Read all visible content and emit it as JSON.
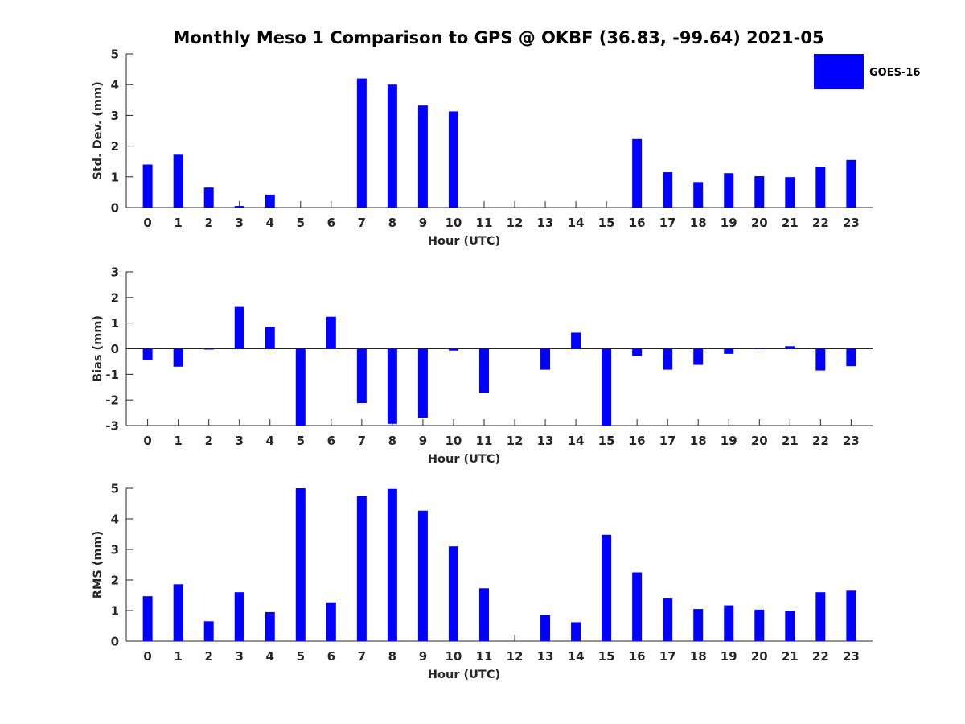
{
  "figure_title": "Monthly Meso 1 Comparison to GPS @ OKBF (36.83, -99.64) 2021-05",
  "legend": {
    "label": "GOES-16",
    "color": "#0000ff"
  },
  "bar_color": "#0000ff",
  "chart_data": [
    {
      "type": "bar",
      "title": "Monthly Meso 1 Comparison to GPS @ OKBF (36.83, -99.64) 2021-05",
      "xlabel": "Hour (UTC)",
      "ylabel": "Std. Dev. (mm)",
      "ylim": [
        0,
        5
      ],
      "yticks": [
        0,
        1,
        2,
        3,
        4,
        5
      ],
      "categories": [
        "0",
        "1",
        "2",
        "3",
        "4",
        "5",
        "6",
        "7",
        "8",
        "9",
        "10",
        "11",
        "12",
        "13",
        "14",
        "15",
        "16",
        "17",
        "18",
        "19",
        "20",
        "21",
        "22",
        "23"
      ],
      "series": [
        {
          "name": "GOES-16",
          "values": [
            1.4,
            1.72,
            0.65,
            0.05,
            0.42,
            null,
            null,
            4.2,
            4.0,
            3.32,
            3.13,
            null,
            null,
            null,
            null,
            null,
            2.23,
            1.15,
            0.83,
            1.12,
            1.02,
            0.99,
            1.33,
            1.55
          ]
        }
      ]
    },
    {
      "type": "bar",
      "xlabel": "Hour (UTC)",
      "ylabel": "Bias (mm)",
      "ylim": [
        -3,
        3
      ],
      "yticks": [
        -3,
        -2,
        -1,
        0,
        1,
        2,
        3
      ],
      "categories": [
        "0",
        "1",
        "2",
        "3",
        "4",
        "5",
        "6",
        "7",
        "8",
        "9",
        "10",
        "11",
        "12",
        "13",
        "14",
        "15",
        "16",
        "17",
        "18",
        "19",
        "20",
        "21",
        "22",
        "23"
      ],
      "series": [
        {
          "name": "GOES-16",
          "values": [
            -0.45,
            -0.7,
            -0.02,
            1.63,
            0.85,
            -3.0,
            1.25,
            -2.12,
            -2.93,
            -2.7,
            -0.07,
            -1.72,
            null,
            -0.82,
            0.63,
            -3.0,
            -0.28,
            -0.82,
            -0.63,
            -0.2,
            0.03,
            0.1,
            -0.85,
            -0.68
          ]
        }
      ]
    },
    {
      "type": "bar",
      "xlabel": "Hour (UTC)",
      "ylabel": "RMS (mm)",
      "ylim": [
        0,
        5
      ],
      "yticks": [
        0,
        1,
        2,
        3,
        4,
        5
      ],
      "categories": [
        "0",
        "1",
        "2",
        "3",
        "4",
        "5",
        "6",
        "7",
        "8",
        "9",
        "10",
        "11",
        "12",
        "13",
        "14",
        "15",
        "16",
        "17",
        "18",
        "19",
        "20",
        "21",
        "22",
        "23"
      ],
      "series": [
        {
          "name": "GOES-16",
          "values": [
            1.47,
            1.86,
            0.65,
            1.6,
            0.95,
            5.0,
            1.27,
            4.75,
            4.98,
            4.27,
            3.1,
            1.73,
            null,
            0.85,
            0.62,
            3.48,
            2.25,
            1.42,
            1.05,
            1.17,
            1.03,
            1.0,
            1.6,
            1.65
          ]
        }
      ]
    }
  ]
}
